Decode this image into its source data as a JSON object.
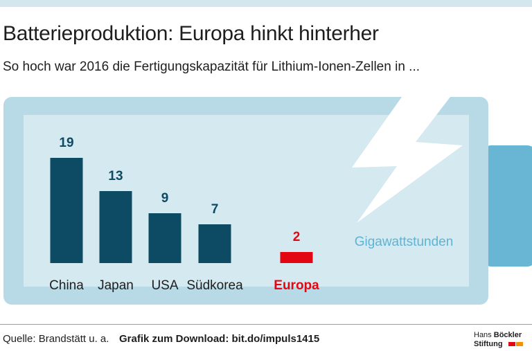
{
  "header": {
    "title": "Batterieproduktion: Europa hinkt hinterher",
    "subtitle": "So hoch war 2016 die Fertigungskapazität für Lithium-Ionen-Zellen in ..."
  },
  "chart_data": {
    "type": "bar",
    "categories": [
      "China",
      "Japan",
      "USA",
      "Südkorea",
      "Europa"
    ],
    "values": [
      19,
      13,
      9,
      7,
      2
    ],
    "unit_label": "Gigawattstunden",
    "highlight_category": "Europa",
    "title": "",
    "xlabel": "",
    "ylabel": "",
    "ylim": [
      0,
      19
    ],
    "grid": false,
    "legend": "none",
    "colors": {
      "bar": "#0d4a63",
      "highlight": "#e30613",
      "unit_label": "#5fb3d3"
    }
  },
  "colors": {
    "battery_outer": "#b7dae6",
    "battery_inner": "#d4e9f0",
    "battery_terminal": "#68b5d4",
    "lightning": "#ffffff",
    "logo_red": "#e30613",
    "logo_orange": "#f39200"
  },
  "footer": {
    "source": "Quelle: Brandstätt u. a.",
    "download": "Grafik zum Download: bit.do/impuls1415",
    "logo_line1_a": "Hans ",
    "logo_line1_b": "Böckler",
    "logo_line2": "Stiftung"
  }
}
